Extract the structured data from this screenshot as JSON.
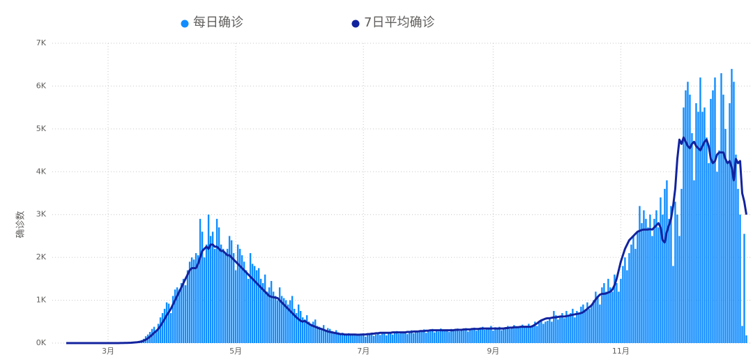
{
  "chart_data": {
    "type": "bar",
    "y_label": "确诊数",
    "categories": [
      null,
      null,
      null,
      null,
      null,
      null,
      null,
      null,
      null,
      null,
      null,
      null,
      null,
      null,
      null,
      null,
      null,
      null,
      null,
      null,
      "3月",
      null,
      null,
      null,
      null,
      null,
      null,
      null,
      null,
      null,
      null,
      null,
      null,
      null,
      null,
      null,
      null,
      null,
      null,
      null,
      null,
      null,
      null,
      null,
      null,
      null,
      null,
      null,
      null,
      null,
      null,
      null,
      null,
      null,
      null,
      null,
      null,
      null,
      null,
      null,
      null,
      null,
      null,
      null,
      null,
      null,
      null,
      null,
      null,
      null,
      null,
      null,
      null,
      null,
      null,
      null,
      null,
      null,
      null,
      null,
      null,
      "5月",
      null,
      null,
      null,
      null,
      null,
      null,
      null,
      null,
      null,
      null,
      null,
      null,
      null,
      null,
      null,
      null,
      null,
      null,
      null,
      null,
      null,
      null,
      null,
      null,
      null,
      null,
      null,
      null,
      null,
      null,
      null,
      null,
      null,
      null,
      null,
      null,
      null,
      null,
      null,
      null,
      null,
      null,
      null,
      null,
      null,
      null,
      null,
      null,
      null,
      null,
      null,
      null,
      null,
      null,
      null,
      null,
      null,
      null,
      null,
      null,
      "7月",
      null,
      null,
      null,
      null,
      null,
      null,
      null,
      null,
      null,
      null,
      null,
      null,
      null,
      null,
      null,
      null,
      null,
      null,
      null,
      null,
      null,
      null,
      null,
      null,
      null,
      null,
      null,
      null,
      null,
      null,
      null,
      null,
      null,
      null,
      null,
      null,
      null,
      null,
      null,
      null,
      null,
      null,
      null,
      null,
      null,
      null,
      null,
      null,
      null,
      null,
      null,
      null,
      null,
      null,
      null,
      null,
      null,
      null,
      null,
      null,
      null,
      "9月",
      null,
      null,
      null,
      null,
      null,
      null,
      null,
      null,
      null,
      null,
      null,
      null,
      null,
      null,
      null,
      null,
      null,
      null,
      null,
      null,
      null,
      null,
      null,
      null,
      null,
      null,
      null,
      null,
      null,
      null,
      null,
      null,
      null,
      null,
      null,
      null,
      null,
      null,
      null,
      null,
      null,
      null,
      null,
      null,
      null,
      null,
      null,
      null,
      null,
      null,
      null,
      null,
      null,
      null,
      null,
      null,
      null,
      null,
      null,
      null,
      "11月",
      null,
      null,
      null,
      null,
      null,
      null,
      null,
      null,
      null,
      null,
      null,
      null,
      null,
      null,
      null,
      null,
      null,
      null,
      null,
      null,
      null,
      null,
      null,
      null,
      null,
      null,
      null,
      null,
      null,
      null,
      null,
      null,
      null,
      null,
      null,
      null,
      null,
      null,
      null,
      null,
      null,
      null,
      null,
      null,
      null,
      null,
      null,
      null,
      null,
      null,
      null,
      null,
      null,
      null,
      null,
      null,
      null,
      null,
      null,
      null
    ],
    "series": [
      {
        "name": "每日确诊",
        "color": "#118dff",
        "type": "bar",
        "values": [
          0,
          0,
          0,
          0,
          0,
          0,
          0,
          0,
          0,
          0,
          0,
          0,
          0,
          0,
          0,
          0,
          0,
          0,
          0,
          0,
          0,
          0,
          0,
          1,
          2,
          2,
          3,
          5,
          6,
          8,
          10,
          15,
          20,
          25,
          35,
          50,
          70,
          100,
          160,
          200,
          260,
          330,
          380,
          300,
          450,
          600,
          700,
          800,
          950,
          920,
          700,
          1100,
          1250,
          1300,
          1250,
          1400,
          1500,
          1350,
          1700,
          1900,
          2000,
          1950,
          2100,
          2050,
          2900,
          2600,
          2000,
          2300,
          3000,
          2500,
          2600,
          2200,
          2900,
          2700,
          2300,
          2200,
          2100,
          2200,
          2500,
          2400,
          2100,
          1700,
          2300,
          2200,
          2050,
          1900,
          1700,
          1500,
          2100,
          1850,
          1800,
          1700,
          1750,
          1500,
          1400,
          1600,
          1200,
          1300,
          1450,
          1200,
          1100,
          1000,
          1300,
          1100,
          1050,
          1000,
          900,
          1000,
          1100,
          800,
          700,
          900,
          750,
          600,
          550,
          650,
          500,
          450,
          500,
          550,
          400,
          380,
          350,
          420,
          300,
          350,
          330,
          280,
          250,
          300,
          250,
          220,
          240,
          200,
          180,
          230,
          210,
          190,
          200,
          220,
          180,
          200,
          230,
          150,
          210,
          190,
          230,
          170,
          200,
          240,
          190,
          220,
          250,
          180,
          230,
          260,
          200,
          240,
          280,
          220,
          250,
          230,
          270,
          210,
          260,
          300,
          230,
          280,
          250,
          300,
          260,
          320,
          240,
          300,
          280,
          330,
          250,
          310,
          270,
          340,
          280,
          300,
          320,
          260,
          330,
          290,
          310,
          340,
          280,
          320,
          300,
          350,
          270,
          330,
          310,
          360,
          290,
          340,
          320,
          380,
          310,
          350,
          330,
          400,
          290,
          370,
          340,
          380,
          300,
          360,
          350,
          400,
          330,
          380,
          420,
          350,
          390,
          360,
          430,
          370,
          400,
          450,
          380,
          420,
          500,
          400,
          480,
          550,
          450,
          500,
          520,
          600,
          500,
          750,
          650,
          550,
          600,
          700,
          580,
          750,
          650,
          700,
          800,
          600,
          750,
          700,
          850,
          900,
          750,
          950,
          800,
          900,
          1000,
          1200,
          1100,
          900,
          1300,
          1400,
          1200,
          1500,
          1300,
          1200,
          1600,
          1400,
          1200,
          1500,
          1800,
          2000,
          1700,
          2100,
          2300,
          2500,
          2200,
          2600,
          3200,
          2800,
          3100,
          2900,
          2700,
          3000,
          2500,
          2900,
          3100,
          2700,
          3400,
          3000,
          3600,
          3800,
          2900,
          3200,
          1800,
          3300,
          3000,
          2500,
          3600,
          5500,
          5900,
          6100,
          5800,
          4900,
          3800,
          5600,
          5400,
          6200,
          5400,
          5500,
          4800,
          4200,
          5700,
          5900,
          6200,
          4000,
          4500,
          6300,
          5800,
          5000,
          4200,
          5600,
          6400,
          6100,
          4400,
          3600,
          3000,
          400,
          2550,
          180
        ]
      },
      {
        "name": "7日平均确诊",
        "color": "#12239e",
        "type": "line",
        "values": [
          0,
          0,
          0,
          0,
          0,
          0,
          0,
          0,
          0,
          0,
          0,
          0,
          0,
          0,
          0,
          0,
          0,
          0,
          0,
          0,
          0,
          0,
          0,
          0,
          1,
          1,
          2,
          3,
          4,
          5,
          7,
          9,
          12,
          16,
          20,
          28,
          38,
          55,
          80,
          110,
          150,
          190,
          240,
          280,
          330,
          400,
          480,
          560,
          650,
          720,
          800,
          900,
          1000,
          1100,
          1200,
          1300,
          1400,
          1500,
          1600,
          1700,
          1750,
          1750,
          1750,
          1850,
          2000,
          2150,
          2200,
          2250,
          2200,
          2300,
          2300,
          2250,
          2250,
          2200,
          2150,
          2150,
          2100,
          2050,
          2050,
          2000,
          1950,
          1900,
          1850,
          1800,
          1750,
          1700,
          1650,
          1600,
          1550,
          1500,
          1450,
          1400,
          1350,
          1300,
          1250,
          1200,
          1150,
          1100,
          1080,
          1070,
          1060,
          1050,
          1000,
          950,
          900,
          850,
          800,
          750,
          700,
          650,
          600,
          560,
          520,
          500,
          520,
          480,
          450,
          420,
          400,
          380,
          360,
          340,
          330,
          310,
          290,
          270,
          260,
          250,
          240,
          230,
          220,
          210,
          210,
          200,
          200,
          200,
          200,
          200,
          200,
          195,
          195,
          200,
          200,
          200,
          210,
          210,
          220,
          220,
          230,
          230,
          240,
          240,
          240,
          240,
          240,
          240,
          250,
          250,
          250,
          250,
          250,
          250,
          250,
          260,
          260,
          260,
          270,
          270,
          270,
          280,
          280,
          280,
          290,
          290,
          300,
          300,
          300,
          300,
          300,
          300,
          300,
          300,
          300,
          300,
          300,
          300,
          310,
          310,
          310,
          310,
          320,
          320,
          320,
          320,
          330,
          330,
          330,
          330,
          340,
          340,
          340,
          340,
          340,
          340,
          340,
          340,
          340,
          340,
          340,
          340,
          350,
          350,
          360,
          360,
          370,
          370,
          370,
          380,
          380,
          380,
          380,
          380,
          380,
          400,
          430,
          460,
          500,
          530,
          550,
          570,
          580,
          580,
          590,
          600,
          600,
          610,
          620,
          620,
          620,
          630,
          640,
          650,
          660,
          670,
          680,
          690,
          700,
          720,
          760,
          800,
          840,
          880,
          950,
          1020,
          1080,
          1130,
          1150,
          1150,
          1160,
          1180,
          1200,
          1250,
          1350,
          1500,
          1700,
          1900,
          2050,
          2200,
          2300,
          2400,
          2450,
          2500,
          2550,
          2600,
          2620,
          2640,
          2650,
          2650,
          2650,
          2660,
          2650,
          2700,
          2750,
          2800,
          2700,
          2400,
          2350,
          2600,
          2750,
          2900,
          3200,
          3600,
          4300,
          4750,
          4650,
          4800,
          4700,
          4600,
          4550,
          4650,
          4700,
          4600,
          4550,
          4500,
          4600,
          4700,
          4750,
          4600,
          4300,
          4200,
          4250,
          4400,
          4450,
          4450,
          4450,
          4300,
          4200,
          4250,
          4100,
          3800,
          4300,
          4200,
          4250,
          3500,
          3300,
          3000
        ]
      }
    ],
    "ylim": [
      0,
      7000
    ],
    "yticks": [
      {
        "value": 0,
        "label": "0K"
      },
      {
        "value": 1000,
        "label": "1K"
      },
      {
        "value": 2000,
        "label": "2K"
      },
      {
        "value": 3000,
        "label": "3K"
      },
      {
        "value": 4000,
        "label": "4K"
      },
      {
        "value": 5000,
        "label": "5K"
      },
      {
        "value": 6000,
        "label": "6K"
      },
      {
        "value": 7000,
        "label": "7K"
      }
    ],
    "grid": true
  }
}
